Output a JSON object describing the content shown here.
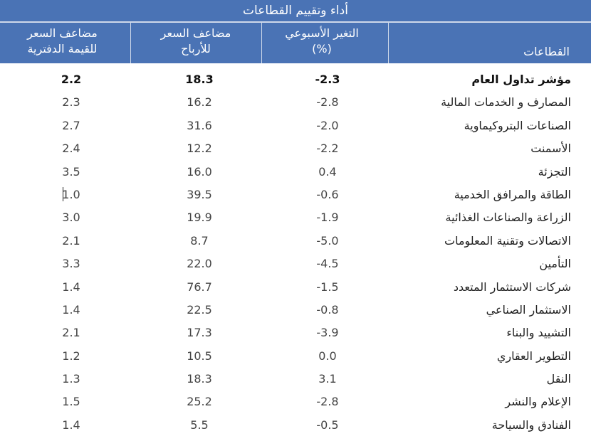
{
  "table": {
    "title": "أداء وتقييم القطاعات",
    "headers": {
      "sector": "القطاعات",
      "weekly_change_line1": "التغير الأسبوعي",
      "weekly_change_line2": "(%)",
      "pe_line1": "مضاعف السعر",
      "pe_line2": "للأرباح",
      "pb_line1": "مضاعف السعر",
      "pb_line2": "للقيمة الدفترية"
    },
    "rows": [
      {
        "sector": "مؤشر تداول العام",
        "weekly_change": "-2.3",
        "pe": "18.3",
        "pb": "2.2"
      },
      {
        "sector": "المصارف و الخدمات المالية",
        "weekly_change": "-2.8",
        "pe": "16.2",
        "pb": "2.3"
      },
      {
        "sector": "الصناعات البتروكيماوية",
        "weekly_change": "-2.0",
        "pe": "31.6",
        "pb": "2.7"
      },
      {
        "sector": "الأسمنت",
        "weekly_change": "-2.2",
        "pe": "12.2",
        "pb": "2.4"
      },
      {
        "sector": "التجزئة",
        "weekly_change": "0.4",
        "pe": "16.0",
        "pb": "3.5"
      },
      {
        "sector": "الطاقة والمرافق الخدمية",
        "weekly_change": "-0.6",
        "pe": "39.5",
        "pb": "1.0"
      },
      {
        "sector": "الزراعة والصناعات الغذائية",
        "weekly_change": "-1.9",
        "pe": "19.9",
        "pb": "3.0"
      },
      {
        "sector": "الاتصالات وتقنية المعلومات",
        "weekly_change": "-5.0",
        "pe": "8.7",
        "pb": "2.1"
      },
      {
        "sector": "التأمين",
        "weekly_change": "-4.5",
        "pe": "22.0",
        "pb": "3.3"
      },
      {
        "sector": "شركات الاستثمار المتعدد",
        "weekly_change": "-1.5",
        "pe": "76.7",
        "pb": "1.4"
      },
      {
        "sector": "الاستثمار الصناعي",
        "weekly_change": "-0.8",
        "pe": "22.5",
        "pb": "1.4"
      },
      {
        "sector": "التشييد والبناء",
        "weekly_change": "-3.9",
        "pe": "17.3",
        "pb": "2.1"
      },
      {
        "sector": "التطوير العقاري",
        "weekly_change": "0.0",
        "pe": "10.5",
        "pb": "1.2"
      },
      {
        "sector": "النقل",
        "weekly_change": "3.1",
        "pe": "18.3",
        "pb": "1.3"
      },
      {
        "sector": "الإعلام والنشر",
        "weekly_change": "-2.8",
        "pe": "25.2",
        "pb": "1.5"
      },
      {
        "sector": "الفنادق والسياحة",
        "weekly_change": "-0.5",
        "pe": "5.5",
        "pb": "1.4"
      }
    ]
  },
  "colors": {
    "header_bg": "#4a73b5",
    "header_text": "#ffffff"
  }
}
